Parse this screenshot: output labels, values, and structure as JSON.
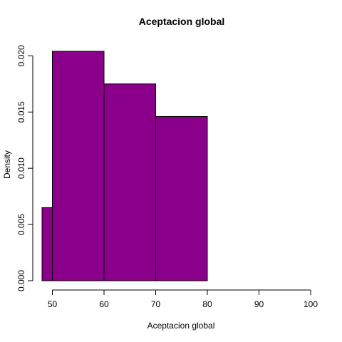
{
  "chart_data": {
    "type": "bar",
    "title": "Aceptacion global",
    "xlabel": "Aceptacion global",
    "ylabel": "Density",
    "bins": [
      {
        "start": 48,
        "end": 50,
        "density": 0.0065
      },
      {
        "start": 50,
        "end": 60,
        "density": 0.0204
      },
      {
        "start": 60,
        "end": 70,
        "density": 0.0175
      },
      {
        "start": 70,
        "end": 80,
        "density": 0.0146
      }
    ],
    "xlim": [
      48,
      100
    ],
    "ylim": [
      0,
      0.0204
    ],
    "xticks": [
      50,
      60,
      70,
      80,
      90,
      100
    ],
    "yticks": [
      "0.000",
      "0.005",
      "0.010",
      "0.015",
      "0.020"
    ],
    "bar_color": "#8B008B",
    "grid": false,
    "legend": "none"
  }
}
